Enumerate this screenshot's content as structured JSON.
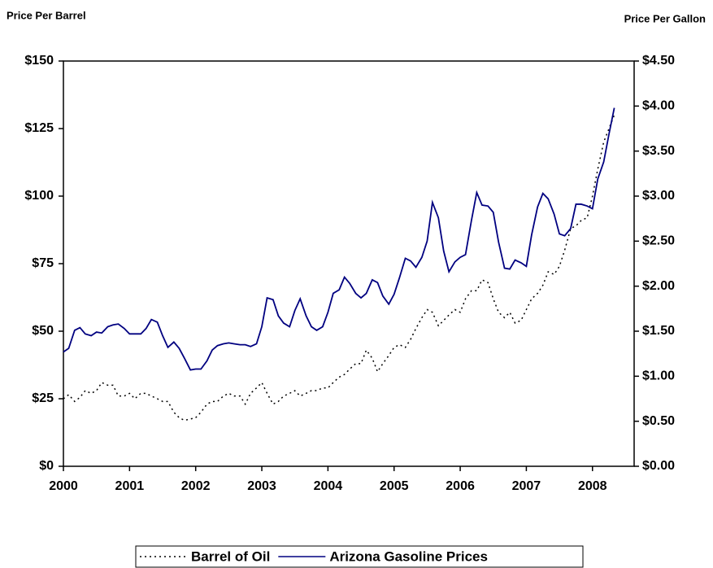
{
  "chart_data": {
    "type": "line",
    "y_label": "Price Per Barrel",
    "y2_label": "Price Per Gallon",
    "x": [
      2000,
      2000.08,
      2000.17,
      2000.25,
      2000.33,
      2000.42,
      2000.5,
      2000.58,
      2000.67,
      2000.75,
      2000.83,
      2000.92,
      2001,
      2001.08,
      2001.17,
      2001.25,
      2001.33,
      2001.42,
      2001.5,
      2001.58,
      2001.67,
      2001.75,
      2001.83,
      2001.92,
      2002,
      2002.08,
      2002.17,
      2002.25,
      2002.33,
      2002.42,
      2002.5,
      2002.58,
      2002.67,
      2002.75,
      2002.83,
      2002.92,
      2003,
      2003.08,
      2003.17,
      2003.25,
      2003.33,
      2003.42,
      2003.5,
      2003.58,
      2003.67,
      2003.75,
      2003.83,
      2003.92,
      2004,
      2004.08,
      2004.17,
      2004.25,
      2004.33,
      2004.42,
      2004.5,
      2004.58,
      2004.67,
      2004.75,
      2004.83,
      2004.92,
      2005,
      2005.08,
      2005.17,
      2005.25,
      2005.33,
      2005.42,
      2005.5,
      2005.58,
      2005.67,
      2005.75,
      2005.83,
      2005.92,
      2006,
      2006.08,
      2006.17,
      2006.25,
      2006.33,
      2006.42,
      2006.5,
      2006.58,
      2006.67,
      2006.75,
      2006.83,
      2006.92,
      2007,
      2007.08,
      2007.17,
      2007.25,
      2007.33,
      2007.42,
      2007.5,
      2007.58,
      2007.67,
      2007.75,
      2007.83,
      2007.92,
      2008,
      2008.08,
      2008.17,
      2008.25,
      2008.33
    ],
    "xlim": [
      2000,
      2008.63
    ],
    "xticks": [
      2000,
      2001,
      2002,
      2003,
      2004,
      2005,
      2006,
      2007,
      2008
    ],
    "ylim": [
      0,
      150
    ],
    "yticks": [
      {
        "value": 0,
        "label": "$0"
      },
      {
        "value": 25,
        "label": "$25"
      },
      {
        "value": 50,
        "label": "$50"
      },
      {
        "value": 75,
        "label": "$75"
      },
      {
        "value": 100,
        "label": "$100"
      },
      {
        "value": 125,
        "label": "$125"
      },
      {
        "value": 150,
        "label": "$150"
      }
    ],
    "y2lim": [
      0,
      4.5
    ],
    "y2ticks": [
      {
        "value": 0,
        "label": "$0.00"
      },
      {
        "value": 0.5,
        "label": "$0.50"
      },
      {
        "value": 1,
        "label": "$1.00"
      },
      {
        "value": 1.5,
        "label": "$1.50"
      },
      {
        "value": 2,
        "label": "$2.00"
      },
      {
        "value": 2.5,
        "label": "$2.50"
      },
      {
        "value": 3,
        "label": "$3.00"
      },
      {
        "value": 3.5,
        "label": "$3.50"
      },
      {
        "value": 4,
        "label": "$4.00"
      },
      {
        "value": 4.5,
        "label": "$4.50"
      }
    ],
    "series": [
      {
        "name": "Barrel of Oil",
        "color": "#000000",
        "style": "dotted",
        "values": [
          25,
          26.5,
          24,
          25.5,
          28,
          27,
          28,
          31,
          30,
          30,
          26,
          26,
          27,
          25,
          27,
          27,
          26,
          25,
          24,
          24,
          20,
          18,
          17,
          17.5,
          18,
          20,
          23,
          24,
          24,
          26,
          27,
          26,
          26,
          23,
          27,
          29,
          31,
          27,
          23,
          24,
          26,
          27,
          28,
          26,
          27,
          28,
          28,
          29,
          29,
          31,
          33,
          34,
          36,
          38,
          38,
          43,
          40,
          35,
          38,
          41,
          44,
          45,
          44,
          47,
          51,
          55,
          58,
          57,
          52,
          54,
          56,
          58,
          57,
          62,
          65,
          65,
          69,
          68,
          62,
          57,
          55,
          57,
          53,
          54,
          58,
          62,
          64,
          67,
          72,
          71,
          74,
          80,
          88,
          89,
          91,
          92,
          100,
          110,
          120,
          125,
          130
        ]
      },
      {
        "name": "Arizona Gasoline Prices",
        "color": "#000080",
        "style": "solid",
        "axis": "y2",
        "values": [
          1.27,
          1.31,
          1.51,
          1.54,
          1.47,
          1.45,
          1.49,
          1.48,
          1.55,
          1.57,
          1.58,
          1.53,
          1.47,
          1.47,
          1.47,
          1.53,
          1.63,
          1.6,
          1.45,
          1.32,
          1.38,
          1.31,
          1.2,
          1.07,
          1.08,
          1.08,
          1.17,
          1.29,
          1.34,
          1.36,
          1.37,
          1.36,
          1.35,
          1.35,
          1.33,
          1.36,
          1.55,
          1.87,
          1.85,
          1.67,
          1.59,
          1.55,
          1.73,
          1.86,
          1.67,
          1.55,
          1.51,
          1.55,
          1.71,
          1.92,
          1.96,
          2.1,
          2.03,
          1.92,
          1.87,
          1.92,
          2.07,
          2.04,
          1.89,
          1.8,
          1.91,
          2.09,
          2.31,
          2.28,
          2.21,
          2.32,
          2.5,
          2.93,
          2.76,
          2.39,
          2.16,
          2.27,
          2.32,
          2.35,
          2.73,
          3.04,
          2.9,
          2.89,
          2.82,
          2.49,
          2.2,
          2.19,
          2.29,
          2.26,
          2.22,
          2.57,
          2.88,
          3.03,
          2.97,
          2.8,
          2.58,
          2.56,
          2.64,
          2.91,
          2.91,
          2.89,
          2.86,
          3.19,
          3.38,
          3.69,
          3.98
        ]
      }
    ]
  }
}
